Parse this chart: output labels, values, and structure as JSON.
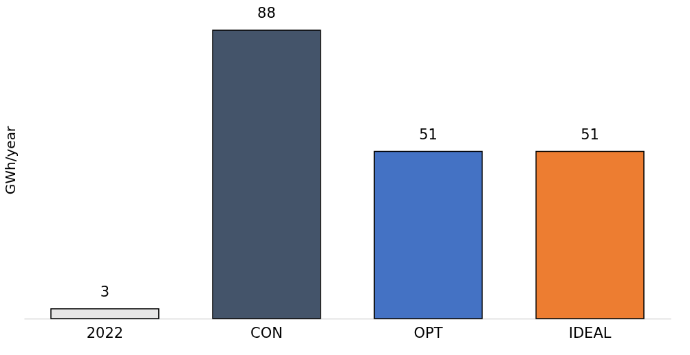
{
  "chart_data": {
    "type": "bar",
    "ylabel": "GWh/year",
    "categories": [
      "2022",
      "CON",
      "OPT",
      "IDEAL"
    ],
    "values": [
      3,
      88,
      51,
      51
    ],
    "colors": [
      "#e7e6e6",
      "#44546a",
      "#4472c4",
      "#ed7d31"
    ],
    "data_labels": true
  }
}
